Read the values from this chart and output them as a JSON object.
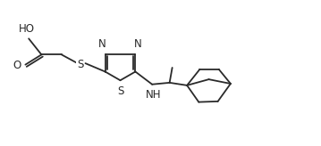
{
  "bg_color": "#ffffff",
  "line_color": "#2a2a2a",
  "line_width": 1.3,
  "font_size": 8.5,
  "figsize": [
    3.59,
    1.64
  ],
  "dpi": 100,
  "xlim": [
    0,
    9.5
  ],
  "ylim": [
    0,
    4.0
  ]
}
